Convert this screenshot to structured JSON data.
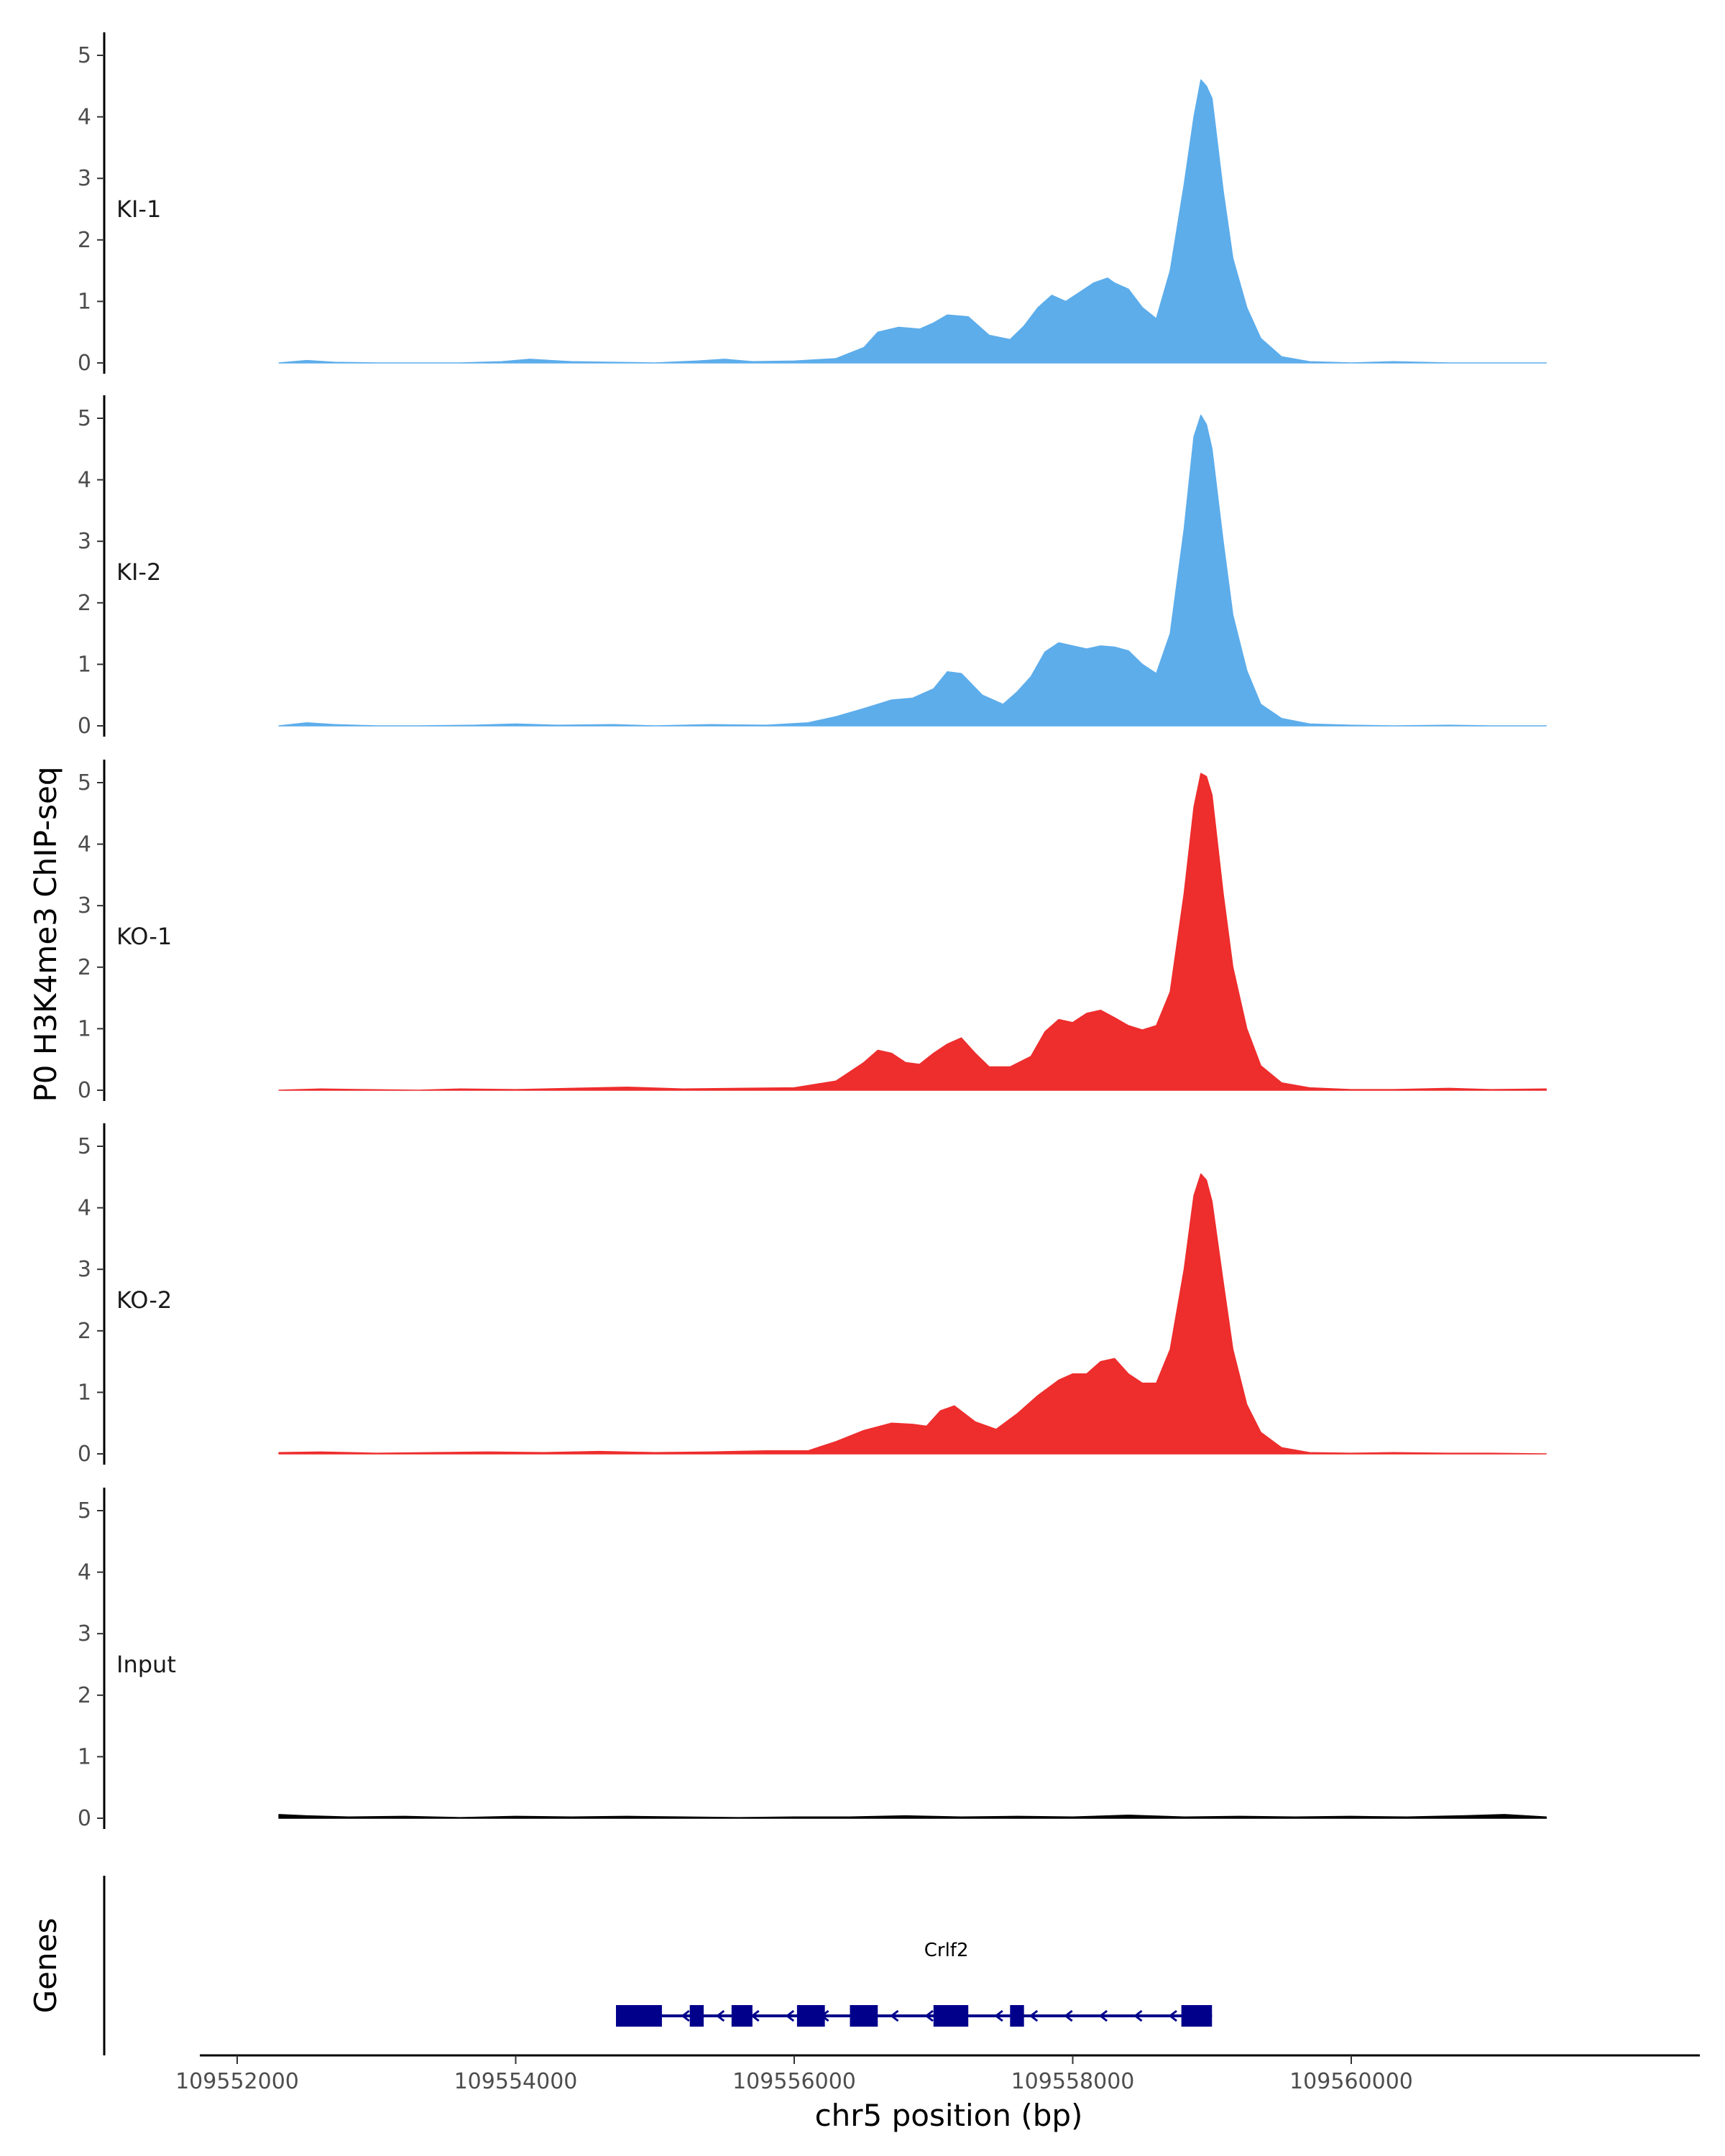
{
  "chart_data": {
    "type": "area",
    "y_axis_title": "P0 H3K4me3 ChIP-seq",
    "x_axis_title": "chr5 position (bp)",
    "gene_panel_title": "Genes",
    "xlim": [
      109551600,
      109562500
    ],
    "x_ticks": [
      109552000,
      109554000,
      109556000,
      109558000,
      109560000
    ],
    "x_tick_labels": [
      "109552000",
      "109554000",
      "109556000",
      "109558000",
      "109560000"
    ],
    "ylim": [
      0,
      5.3
    ],
    "y_ticks": [
      0,
      1,
      2,
      3,
      4,
      5
    ],
    "y_tick_labels": [
      "0",
      "1",
      "2",
      "3",
      "4",
      "5"
    ],
    "colors": {
      "KI": "#5DADEB",
      "KO": "#EE2D2D",
      "Input": "#000000",
      "gene": "#00008B"
    },
    "series": [
      {
        "name": "KI-1",
        "color": "#5DADEB",
        "x": [
          109552300,
          109552500,
          109552700,
          109553000,
          109553300,
          109553600,
          109553900,
          109554100,
          109554400,
          109554700,
          109555000,
          109555300,
          109555500,
          109555700,
          109556000,
          109556300,
          109556500,
          109556600,
          109556750,
          109556900,
          109557000,
          109557100,
          109557250,
          109557400,
          109557550,
          109557650,
          109557750,
          109557850,
          109557950,
          109558050,
          109558150,
          109558250,
          109558300,
          109558400,
          109558500,
          109558600,
          109558700,
          109558800,
          109558870,
          109558920,
          109558960,
          109559000,
          109559080,
          109559150,
          109559250,
          109559350,
          109559500,
          109559700,
          109560000,
          109560300,
          109560700,
          109561000,
          109561400
        ],
        "values": [
          0,
          0.04,
          0.01,
          0,
          0,
          0,
          0.02,
          0.06,
          0.02,
          0.01,
          0,
          0.03,
          0.06,
          0.02,
          0.03,
          0.07,
          0.25,
          0.5,
          0.58,
          0.55,
          0.65,
          0.78,
          0.75,
          0.45,
          0.38,
          0.6,
          0.9,
          1.1,
          1.0,
          1.15,
          1.3,
          1.38,
          1.3,
          1.2,
          0.9,
          0.72,
          1.5,
          2.9,
          4.0,
          4.6,
          4.5,
          4.3,
          2.8,
          1.7,
          0.9,
          0.4,
          0.1,
          0.02,
          0,
          0.02,
          0,
          0,
          0
        ]
      },
      {
        "name": "KI-2",
        "color": "#5DADEB",
        "x": [
          109552300,
          109552500,
          109552700,
          109553000,
          109553300,
          109553700,
          109554000,
          109554300,
          109554700,
          109555000,
          109555400,
          109555800,
          109556100,
          109556300,
          109556500,
          109556700,
          109556850,
          109557000,
          109557100,
          109557200,
          109557350,
          109557500,
          109557600,
          109557700,
          109557800,
          109557900,
          109558000,
          109558100,
          109558200,
          109558300,
          109558400,
          109558500,
          109558600,
          109558700,
          109558800,
          109558870,
          109558920,
          109558960,
          109559000,
          109559080,
          109559150,
          109559250,
          109559350,
          109559500,
          109559700,
          109560000,
          109560300,
          109560700,
          109561000,
          109561400
        ],
        "values": [
          0,
          0.05,
          0.02,
          0,
          0,
          0.01,
          0.03,
          0.01,
          0.02,
          0,
          0.02,
          0.01,
          0.05,
          0.15,
          0.28,
          0.42,
          0.45,
          0.6,
          0.88,
          0.85,
          0.5,
          0.35,
          0.55,
          0.8,
          1.2,
          1.35,
          1.3,
          1.25,
          1.3,
          1.28,
          1.22,
          1.0,
          0.85,
          1.5,
          3.2,
          4.7,
          5.05,
          4.9,
          4.5,
          3.0,
          1.8,
          0.9,
          0.35,
          0.12,
          0.03,
          0.01,
          0,
          0.01,
          0,
          0
        ]
      },
      {
        "name": "KO-1",
        "color": "#EE2D2D",
        "x": [
          109552300,
          109552600,
          109552900,
          109553300,
          109553600,
          109554000,
          109554400,
          109554800,
          109555200,
          109555600,
          109556000,
          109556300,
          109556500,
          109556600,
          109556700,
          109556800,
          109556900,
          109557000,
          109557100,
          109557200,
          109557300,
          109557400,
          109557550,
          109557700,
          109557800,
          109557900,
          109558000,
          109558100,
          109558200,
          109558300,
          109558400,
          109558500,
          109558600,
          109558700,
          109558800,
          109558870,
          109558920,
          109558960,
          109559000,
          109559080,
          109559150,
          109559250,
          109559350,
          109559500,
          109559700,
          109560000,
          109560300,
          109560700,
          109561000,
          109561400
        ],
        "values": [
          0,
          0.02,
          0.01,
          0,
          0.02,
          0.01,
          0.03,
          0.05,
          0.02,
          0.03,
          0.04,
          0.15,
          0.45,
          0.65,
          0.6,
          0.45,
          0.42,
          0.6,
          0.75,
          0.85,
          0.6,
          0.38,
          0.38,
          0.55,
          0.95,
          1.15,
          1.1,
          1.25,
          1.3,
          1.18,
          1.05,
          0.98,
          1.05,
          1.6,
          3.2,
          4.6,
          5.15,
          5.1,
          4.8,
          3.2,
          2.0,
          1.0,
          0.4,
          0.12,
          0.04,
          0.01,
          0.01,
          0.03,
          0.01,
          0.02
        ]
      },
      {
        "name": "KO-2",
        "color": "#EE2D2D",
        "x": [
          109552300,
          109552600,
          109553000,
          109553400,
          109553800,
          109554200,
          109554600,
          109555000,
          109555400,
          109555800,
          109556100,
          109556300,
          109556500,
          109556700,
          109556850,
          109556950,
          109557050,
          109557150,
          109557300,
          109557450,
          109557600,
          109557750,
          109557900,
          109558000,
          109558100,
          109558200,
          109558300,
          109558400,
          109558500,
          109558600,
          109558700,
          109558800,
          109558870,
          109558920,
          109558960,
          109559000,
          109559080,
          109559150,
          109559250,
          109559350,
          109559500,
          109559700,
          109560000,
          109560300,
          109560700,
          109561000,
          109561400
        ],
        "values": [
          0.02,
          0.03,
          0.01,
          0.02,
          0.03,
          0.02,
          0.04,
          0.02,
          0.03,
          0.05,
          0.05,
          0.2,
          0.38,
          0.5,
          0.48,
          0.45,
          0.7,
          0.78,
          0.52,
          0.4,
          0.65,
          0.95,
          1.2,
          1.3,
          1.3,
          1.5,
          1.55,
          1.3,
          1.15,
          1.15,
          1.7,
          3.0,
          4.2,
          4.55,
          4.45,
          4.1,
          2.8,
          1.7,
          0.8,
          0.35,
          0.1,
          0.02,
          0.01,
          0.02,
          0.01,
          0.01,
          0
        ]
      },
      {
        "name": "Input",
        "color": "#000000",
        "x": [
          109552300,
          109552500,
          109552800,
          109553200,
          109553600,
          109554000,
          109554400,
          109554800,
          109555200,
          109555600,
          109556000,
          109556400,
          109556800,
          109557200,
          109557600,
          109558000,
          109558400,
          109558800,
          109559200,
          109559600,
          109560000,
          109560400,
          109560800,
          109561100,
          109561400
        ],
        "values": [
          0.06,
          0.04,
          0.02,
          0.03,
          0.01,
          0.03,
          0.02,
          0.03,
          0.02,
          0.01,
          0.02,
          0.02,
          0.04,
          0.02,
          0.03,
          0.02,
          0.05,
          0.02,
          0.03,
          0.02,
          0.03,
          0.02,
          0.04,
          0.06,
          0.02
        ]
      }
    ],
    "gene": {
      "name": "Crlf2",
      "strand": "-",
      "start": 109554720,
      "end": 109559000,
      "exons": [
        [
          109554720,
          109555050
        ],
        [
          109555250,
          109555350
        ],
        [
          109555550,
          109555700
        ],
        [
          109556020,
          109556220
        ],
        [
          109556400,
          109556600
        ],
        [
          109557000,
          109557250
        ],
        [
          109557550,
          109557650
        ],
        [
          109558780,
          109559000
        ]
      ]
    }
  }
}
